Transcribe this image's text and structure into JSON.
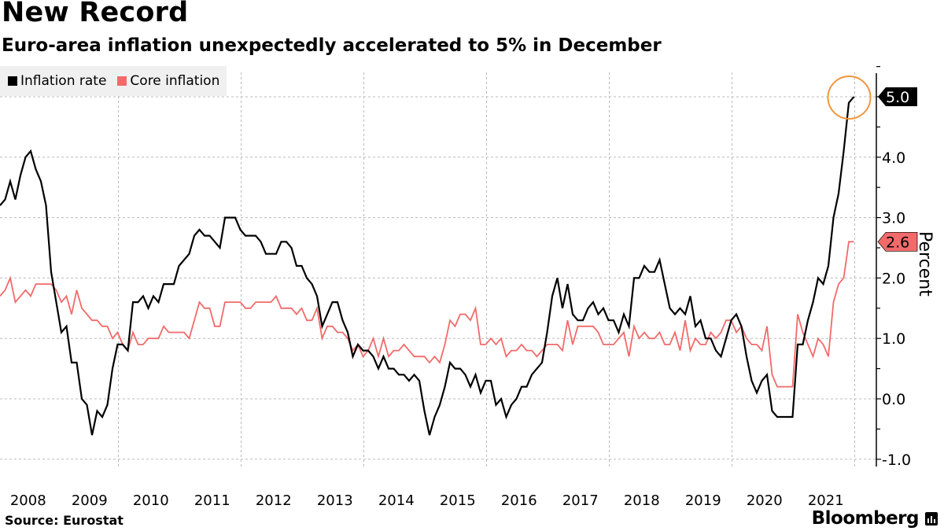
{
  "header": {
    "title": "New Record",
    "subtitle": "Euro-area inflation unexpectedly accelerated to 5% in December"
  },
  "footer": {
    "source": "Source: Eurostat",
    "brand": "Bloomberg"
  },
  "colors": {
    "inflation": "#000000",
    "core": "#f26a6a",
    "highlight_circle": "#f0963c",
    "grid": "#bbbbbb"
  },
  "chart_data": {
    "type": "line",
    "title": "New Record",
    "subtitle": "Euro-area inflation unexpectedly accelerated to 5% in December",
    "xlabel": "",
    "ylabel": "Percent",
    "ylim": [
      -1.1,
      5.4
    ],
    "yticks": [
      "5.0",
      "4.0",
      "3.0",
      "2.0",
      "1.0",
      "0.0",
      "-1.0"
    ],
    "ytick_values": [
      5,
      4,
      3,
      2,
      1,
      0,
      -1
    ],
    "xtick_labels": [
      "2008",
      "2009",
      "2010",
      "2011",
      "2012",
      "2013",
      "2014",
      "2015",
      "2016",
      "2017",
      "2018",
      "2019",
      "2020",
      "2021"
    ],
    "x_start": "2008-01",
    "x_end": "2021-12",
    "frequency": "monthly",
    "grid": true,
    "legend_position": "top-left",
    "last_value_labels": [
      {
        "series": "Inflation rate",
        "value": "5.0"
      },
      {
        "series": "Core inflation",
        "value": "2.6"
      }
    ],
    "annotation": "circle highlighting December 2021 inflation at 5.0%",
    "series": [
      {
        "name": "Inflation rate",
        "color": "#000000",
        "values": [
          3.2,
          3.3,
          3.6,
          3.3,
          3.7,
          4.0,
          4.1,
          3.8,
          3.6,
          3.2,
          2.1,
          1.6,
          1.1,
          1.2,
          0.6,
          0.6,
          0.0,
          -0.1,
          -0.6,
          -0.2,
          -0.3,
          -0.1,
          0.5,
          0.9,
          0.9,
          0.8,
          1.6,
          1.6,
          1.7,
          1.5,
          1.7,
          1.6,
          1.9,
          1.9,
          1.9,
          2.2,
          2.3,
          2.4,
          2.7,
          2.8,
          2.7,
          2.7,
          2.6,
          2.5,
          3.0,
          3.0,
          3.0,
          2.8,
          2.7,
          2.7,
          2.7,
          2.6,
          2.4,
          2.4,
          2.4,
          2.6,
          2.6,
          2.5,
          2.2,
          2.2,
          2.0,
          1.9,
          1.7,
          1.2,
          1.4,
          1.6,
          1.6,
          1.3,
          1.1,
          0.7,
          0.9,
          0.8,
          0.8,
          0.7,
          0.5,
          0.7,
          0.5,
          0.5,
          0.4,
          0.4,
          0.3,
          0.4,
          0.3,
          -0.2,
          -0.6,
          -0.3,
          -0.1,
          0.2,
          0.6,
          0.5,
          0.5,
          0.4,
          0.2,
          0.4,
          0.1,
          0.3,
          0.3,
          -0.1,
          0.0,
          -0.3,
          -0.1,
          0.0,
          0.2,
          0.2,
          0.4,
          0.5,
          0.6,
          1.1,
          1.7,
          2.0,
          1.5,
          1.9,
          1.4,
          1.3,
          1.3,
          1.5,
          1.6,
          1.4,
          1.5,
          1.3,
          1.3,
          1.1,
          1.4,
          1.2,
          2.0,
          2.0,
          2.2,
          2.1,
          2.1,
          2.3,
          1.9,
          1.5,
          1.4,
          1.5,
          1.4,
          1.7,
          1.2,
          1.3,
          1.0,
          1.0,
          0.8,
          0.7,
          1.0,
          1.3,
          1.4,
          1.2,
          0.7,
          0.3,
          0.1,
          0.3,
          0.4,
          -0.2,
          -0.3,
          -0.3,
          -0.3,
          -0.3,
          0.9,
          0.9,
          1.3,
          1.6,
          2.0,
          1.9,
          2.2,
          3.0,
          3.4,
          4.1,
          4.9,
          5.0
        ]
      },
      {
        "name": "Core inflation",
        "color": "#f26a6a",
        "values": [
          1.7,
          1.8,
          2.0,
          1.6,
          1.7,
          1.8,
          1.7,
          1.9,
          1.9,
          1.9,
          1.9,
          1.8,
          1.6,
          1.7,
          1.4,
          1.8,
          1.5,
          1.4,
          1.3,
          1.3,
          1.2,
          1.2,
          1.0,
          1.1,
          0.9,
          0.8,
          1.1,
          0.9,
          0.9,
          1.0,
          1.0,
          1.0,
          1.2,
          1.1,
          1.1,
          1.1,
          1.1,
          1.0,
          1.3,
          1.6,
          1.5,
          1.5,
          1.2,
          1.2,
          1.6,
          1.6,
          1.6,
          1.6,
          1.5,
          1.5,
          1.6,
          1.6,
          1.6,
          1.6,
          1.7,
          1.5,
          1.5,
          1.5,
          1.4,
          1.5,
          1.3,
          1.3,
          1.5,
          1.0,
          1.2,
          1.2,
          1.1,
          1.1,
          1.0,
          0.8,
          0.9,
          0.7,
          0.8,
          1.0,
          0.7,
          1.0,
          0.7,
          0.8,
          0.8,
          0.9,
          0.8,
          0.7,
          0.7,
          0.7,
          0.6,
          0.7,
          0.6,
          0.9,
          1.3,
          1.2,
          1.4,
          1.4,
          1.3,
          1.5,
          0.9,
          0.9,
          1.0,
          0.9,
          1.0,
          0.7,
          0.8,
          0.8,
          0.9,
          0.8,
          0.8,
          0.7,
          0.8,
          0.9,
          0.9,
          0.9,
          0.8,
          1.3,
          0.9,
          1.2,
          1.2,
          1.2,
          1.2,
          1.1,
          0.9,
          0.9,
          0.9,
          1.0,
          1.1,
          0.7,
          1.2,
          1.0,
          1.1,
          1.0,
          1.0,
          1.1,
          0.9,
          0.9,
          1.1,
          0.8,
          1.3,
          0.8,
          1.0,
          0.9,
          0.9,
          1.1,
          1.0,
          1.1,
          1.3,
          1.3,
          1.1,
          1.2,
          1.0,
          0.9,
          0.9,
          0.8,
          1.2,
          0.4,
          0.2,
          0.2,
          0.2,
          0.2,
          1.4,
          1.1,
          0.9,
          0.7,
          1.0,
          0.9,
          0.7,
          1.6,
          1.9,
          2.0,
          2.6,
          2.6
        ]
      }
    ]
  }
}
